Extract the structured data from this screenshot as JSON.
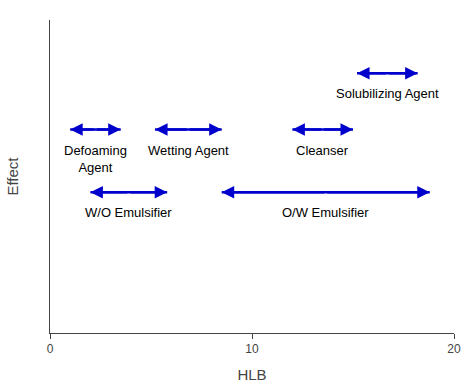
{
  "chart_data": {
    "type": "range_arrows",
    "xlabel": "HLB",
    "ylabel": "Effect",
    "xlim": [
      0,
      20
    ],
    "ylim": [
      0,
      10
    ],
    "xticks": [
      0,
      10,
      20
    ],
    "tick_labels": "x",
    "grid": false,
    "color": "#0000CC",
    "series": [
      {
        "name": "Solubilizing Agent",
        "x": [
          15.2,
          18.2
        ],
        "y": 8.3
      },
      {
        "name": "Defoaming\nAgent",
        "x": [
          1.0,
          3.5
        ],
        "y": 6.5
      },
      {
        "name": "Wetting Agent",
        "x": [
          5.2,
          8.5
        ],
        "y": 6.5
      },
      {
        "name": "Cleanser",
        "x": [
          12.0,
          15.0
        ],
        "y": 6.5
      },
      {
        "name": "W/O Emulsifier",
        "x": [
          2.0,
          5.8
        ],
        "y": 4.5
      },
      {
        "name": "O/W Emulsifier",
        "x": [
          8.5,
          18.8
        ],
        "y": 4.5
      }
    ]
  }
}
